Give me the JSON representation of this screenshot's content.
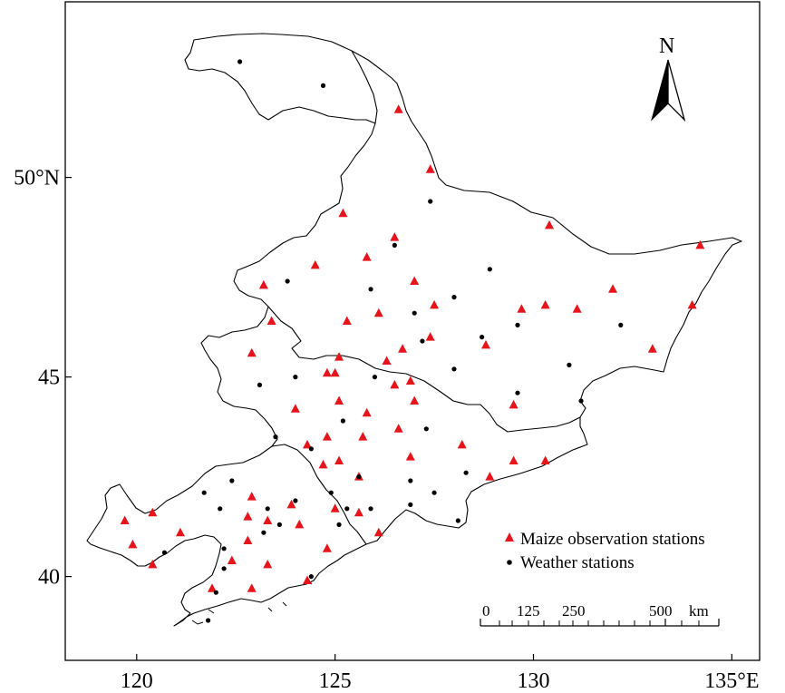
{
  "map": {
    "x_ticks": [
      {
        "value": 120,
        "label": "120"
      },
      {
        "value": 125,
        "label": "125"
      },
      {
        "value": 130,
        "label": "130"
      },
      {
        "value": 135,
        "label": "135°E"
      }
    ],
    "y_ticks": [
      {
        "value": 40,
        "label": "40"
      },
      {
        "value": 45,
        "label": "45"
      },
      {
        "value": 50,
        "label": "50°N"
      }
    ],
    "xlim": [
      118.2,
      135.7
    ],
    "ylim": [
      37.9,
      54.4
    ],
    "north_label": "N",
    "legend": {
      "items": [
        {
          "label": "Maize observation stations",
          "symbol": "triangle",
          "color": "#e8141b"
        },
        {
          "label": "Weather stations",
          "symbol": "dot",
          "color": "#000000"
        }
      ]
    },
    "scale_bar": {
      "labels": [
        "0",
        "125",
        "250",
        "500"
      ],
      "unit": "km"
    }
  },
  "chart_data": {
    "type": "scatter",
    "xlim": [
      118.2,
      135.7
    ],
    "ylim": [
      37.9,
      54.4
    ],
    "series": [
      {
        "name": "Maize observation stations",
        "color": "#e8141b",
        "marker": "triangle",
        "points": [
          [
            126.6,
            51.7
          ],
          [
            127.4,
            50.2
          ],
          [
            125.2,
            49.1
          ],
          [
            130.4,
            48.8
          ],
          [
            134.2,
            48.3
          ],
          [
            126.5,
            48.5
          ],
          [
            125.8,
            48.0
          ],
          [
            124.5,
            47.8
          ],
          [
            123.2,
            47.3
          ],
          [
            127.0,
            47.4
          ],
          [
            132.0,
            47.2
          ],
          [
            123.4,
            46.4
          ],
          [
            125.3,
            46.4
          ],
          [
            126.1,
            46.6
          ],
          [
            127.5,
            46.8
          ],
          [
            129.7,
            46.7
          ],
          [
            130.3,
            46.8
          ],
          [
            131.1,
            46.7
          ],
          [
            134.0,
            46.8
          ],
          [
            127.4,
            46.0
          ],
          [
            122.9,
            45.6
          ],
          [
            126.7,
            45.7
          ],
          [
            128.8,
            45.8
          ],
          [
            133.0,
            45.7
          ],
          [
            125.1,
            45.5
          ],
          [
            126.3,
            45.4
          ],
          [
            124.8,
            45.1
          ],
          [
            125.0,
            45.1
          ],
          [
            126.5,
            44.8
          ],
          [
            126.9,
            44.9
          ],
          [
            125.1,
            44.4
          ],
          [
            127.0,
            44.4
          ],
          [
            124.0,
            44.2
          ],
          [
            125.8,
            44.1
          ],
          [
            129.5,
            44.3
          ],
          [
            126.6,
            43.7
          ],
          [
            124.8,
            43.5
          ],
          [
            125.7,
            43.5
          ],
          [
            124.3,
            43.3
          ],
          [
            128.2,
            43.3
          ],
          [
            125.1,
            42.9
          ],
          [
            126.9,
            43.0
          ],
          [
            129.5,
            42.9
          ],
          [
            130.3,
            42.9
          ],
          [
            124.7,
            42.8
          ],
          [
            125.6,
            42.5
          ],
          [
            128.9,
            42.5
          ],
          [
            122.9,
            42.0
          ],
          [
            122.8,
            41.5
          ],
          [
            123.9,
            41.8
          ],
          [
            125.0,
            41.7
          ],
          [
            119.7,
            41.4
          ],
          [
            120.4,
            41.6
          ],
          [
            125.6,
            41.6
          ],
          [
            123.3,
            41.4
          ],
          [
            121.1,
            41.1
          ],
          [
            124.1,
            41.3
          ],
          [
            126.1,
            41.1
          ],
          [
            122.8,
            40.9
          ],
          [
            119.9,
            40.8
          ],
          [
            124.8,
            40.7
          ],
          [
            120.4,
            40.3
          ],
          [
            122.4,
            40.4
          ],
          [
            123.3,
            40.3
          ],
          [
            121.9,
            39.7
          ],
          [
            122.9,
            39.7
          ],
          [
            124.3,
            39.9
          ]
        ]
      },
      {
        "name": "Weather stations",
        "color": "#000000",
        "marker": "dot",
        "points": [
          [
            122.6,
            52.9
          ],
          [
            124.7,
            52.3
          ],
          [
            127.4,
            49.4
          ],
          [
            126.5,
            48.3
          ],
          [
            123.8,
            47.4
          ],
          [
            128.9,
            47.7
          ],
          [
            125.9,
            47.2
          ],
          [
            128.0,
            47.0
          ],
          [
            127.0,
            46.6
          ],
          [
            129.6,
            46.3
          ],
          [
            132.2,
            46.3
          ],
          [
            127.2,
            45.9
          ],
          [
            128.7,
            46.0
          ],
          [
            128.0,
            45.2
          ],
          [
            130.9,
            45.3
          ],
          [
            124.0,
            45.0
          ],
          [
            126.0,
            45.0
          ],
          [
            123.1,
            44.8
          ],
          [
            131.2,
            44.4
          ],
          [
            129.6,
            44.6
          ],
          [
            125.2,
            43.9
          ],
          [
            127.3,
            43.7
          ],
          [
            123.5,
            43.5
          ],
          [
            124.4,
            43.2
          ],
          [
            128.3,
            42.6
          ],
          [
            125.6,
            42.5
          ],
          [
            126.9,
            42.4
          ],
          [
            127.5,
            42.1
          ],
          [
            122.4,
            42.4
          ],
          [
            121.7,
            42.1
          ],
          [
            124.9,
            42.1
          ],
          [
            124.0,
            41.9
          ],
          [
            123.3,
            41.7
          ],
          [
            125.3,
            41.7
          ],
          [
            125.9,
            41.7
          ],
          [
            122.1,
            41.7
          ],
          [
            126.9,
            41.8
          ],
          [
            123.6,
            41.3
          ],
          [
            125.1,
            41.3
          ],
          [
            128.1,
            41.4
          ],
          [
            123.2,
            41.1
          ],
          [
            120.7,
            40.6
          ],
          [
            122.2,
            40.7
          ],
          [
            122.2,
            40.2
          ],
          [
            124.4,
            40.0
          ],
          [
            122.0,
            39.6
          ],
          [
            121.8,
            38.9
          ]
        ]
      }
    ]
  }
}
